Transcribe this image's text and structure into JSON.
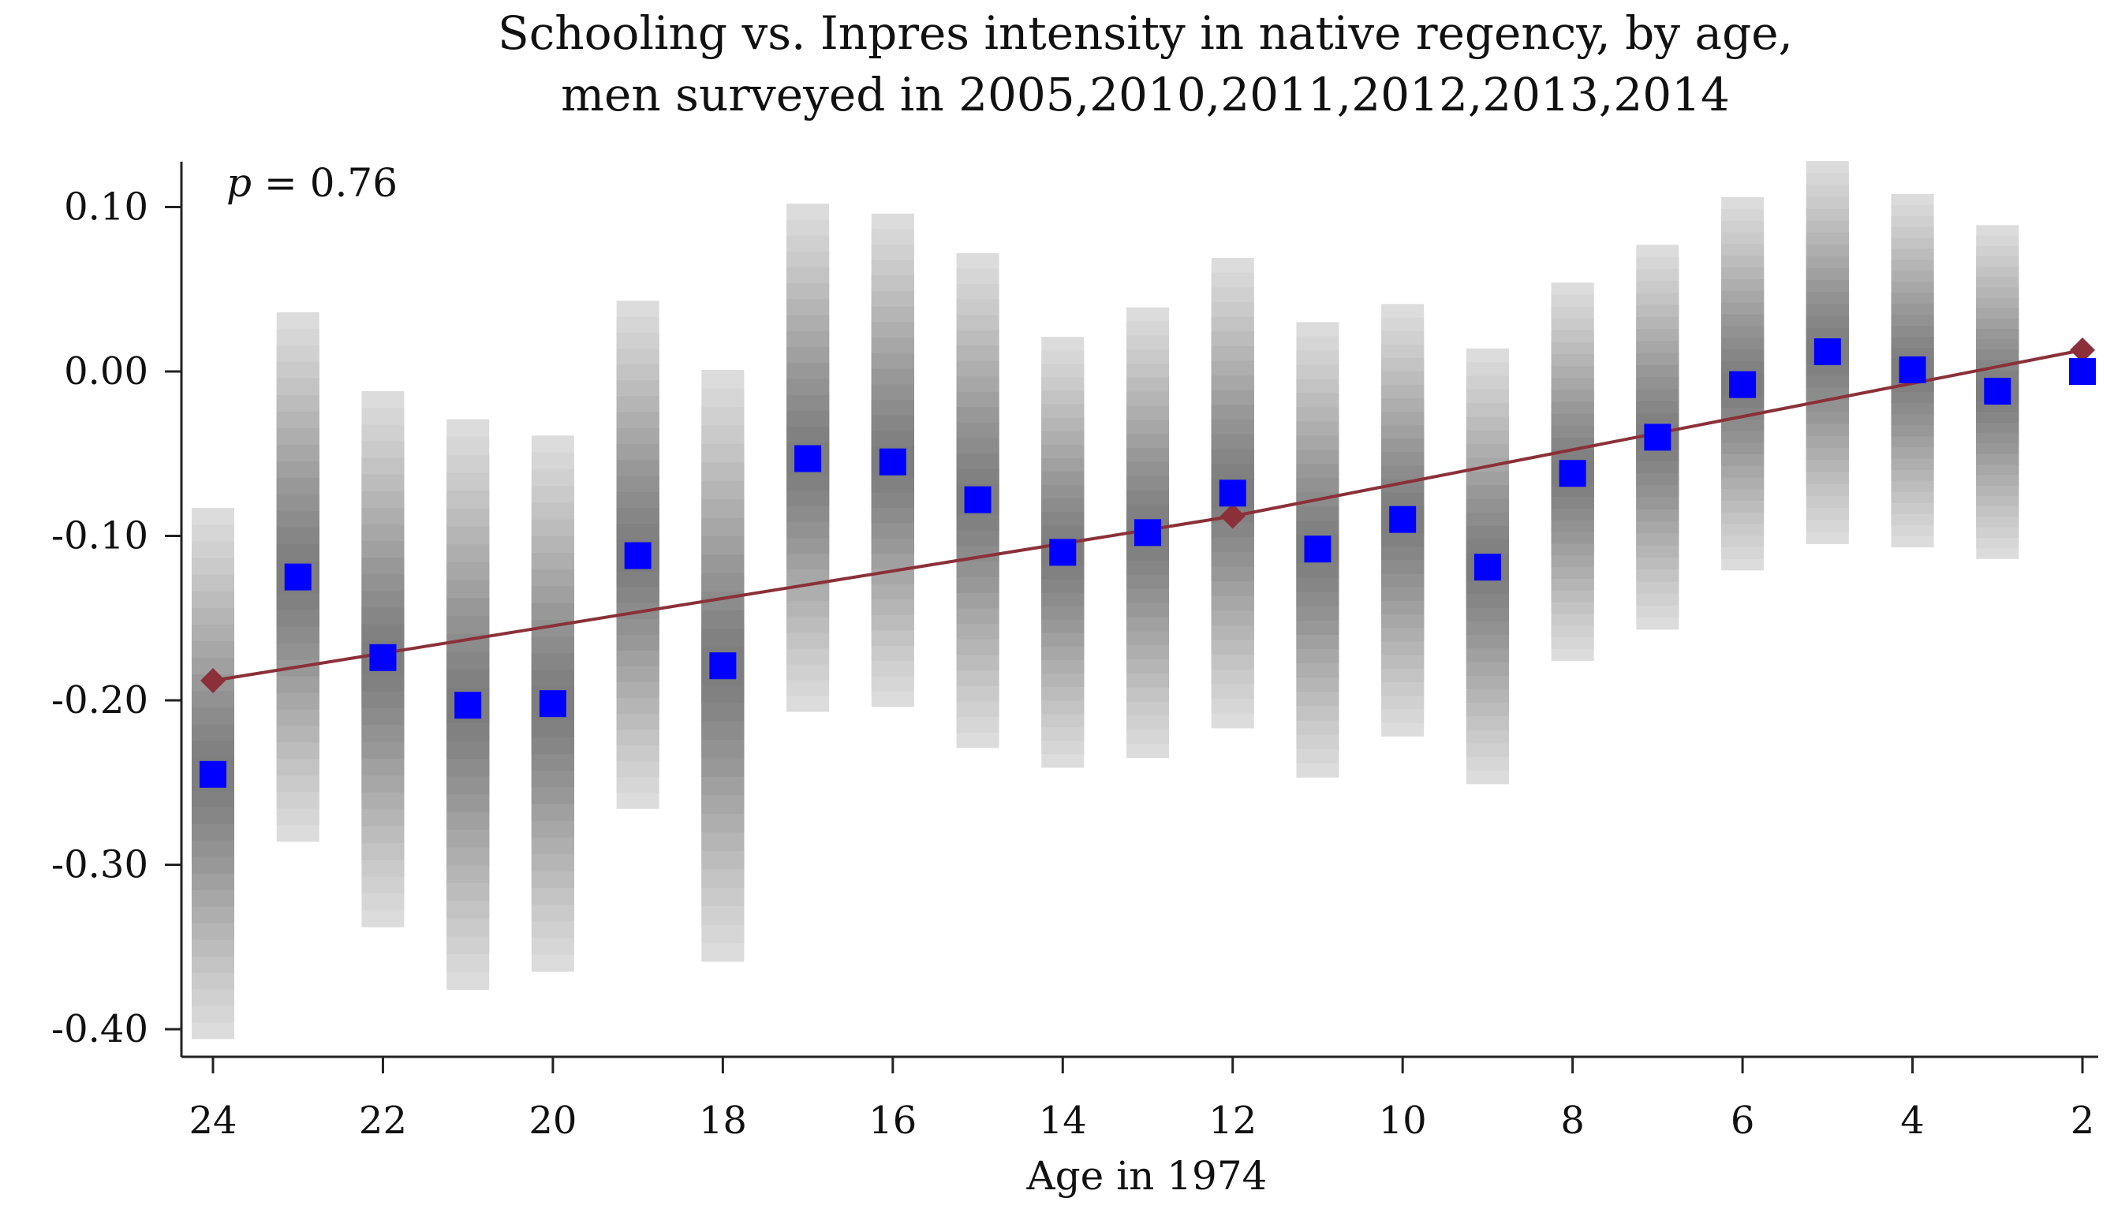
{
  "chart_data": {
    "type": "scatter",
    "title": [
      "Schooling vs. Inpres intensity in native regency, by age,",
      "men surveyed in 2005,2010,2011,2012,2013,2014"
    ],
    "xlabel": "Age in 1974",
    "ylabel": "",
    "annotation": {
      "italic": "p",
      "rest": " = 0.76"
    },
    "x_reversed": true,
    "xlim": [
      24,
      2
    ],
    "ylim": [
      -0.42,
      0.13
    ],
    "x_ticks": [
      24,
      22,
      20,
      18,
      16,
      14,
      12,
      10,
      8,
      6,
      4,
      2
    ],
    "x_tick_labels": [
      "24",
      "22",
      "20",
      "18",
      "16",
      "14",
      "12",
      "10",
      "8",
      "6",
      "4",
      "2"
    ],
    "y_ticks": [
      0.1,
      0.0,
      -0.1,
      -0.2,
      -0.3,
      -0.4
    ],
    "y_tick_labels": [
      "0.10",
      "0.00",
      "-0.10",
      "-0.20",
      "-0.30",
      "-0.40"
    ],
    "grid": false,
    "series": [
      {
        "kind": "points",
        "color": "#0000ff",
        "x": [
          24,
          23,
          22,
          21,
          20,
          19,
          18,
          17,
          16,
          15,
          14,
          13,
          12,
          11,
          10,
          9,
          8,
          7,
          6,
          5,
          4,
          3,
          2
        ],
        "y": [
          -0.245,
          -0.125,
          -0.174,
          -0.203,
          -0.202,
          -0.112,
          -0.179,
          -0.053,
          -0.055,
          -0.078,
          -0.11,
          -0.098,
          -0.074,
          -0.108,
          -0.09,
          -0.119,
          -0.062,
          -0.04,
          -0.008,
          0.012,
          0.001,
          -0.012,
          0.0
        ],
        "ci_low": [
          -0.406,
          -0.286,
          -0.338,
          -0.376,
          -0.365,
          -0.266,
          -0.359,
          -0.207,
          -0.204,
          -0.229,
          -0.241,
          -0.235,
          -0.217,
          -0.247,
          -0.222,
          -0.251,
          -0.176,
          -0.157,
          -0.121,
          -0.105,
          -0.107,
          -0.114,
          null
        ],
        "ci_high": [
          -0.083,
          0.036,
          -0.012,
          -0.029,
          -0.039,
          0.043,
          0.001,
          0.102,
          0.096,
          0.072,
          0.021,
          0.039,
          0.069,
          0.03,
          0.041,
          0.014,
          0.054,
          0.077,
          0.106,
          0.128,
          0.108,
          0.089,
          null
        ]
      },
      {
        "kind": "line",
        "color": "#8b3039",
        "x": [
          24,
          12,
          2
        ],
        "y": [
          -0.188,
          -0.088,
          0.013
        ]
      }
    ]
  }
}
